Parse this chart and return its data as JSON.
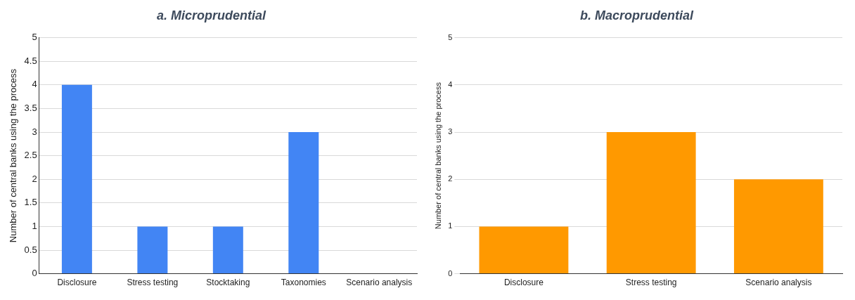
{
  "chart_data": [
    {
      "type": "bar",
      "title": "a. Microprudential",
      "ylabel": "Number of central banks using the process",
      "categories": [
        "Disclosure",
        "Stress testing",
        "Stocktaking",
        "Taxonomies",
        "Scenario analysis"
      ],
      "values": [
        4,
        1,
        1,
        3,
        0
      ],
      "color": "#4285f4",
      "ylim": [
        0,
        5
      ],
      "yticks": [
        0,
        0.5,
        1,
        1.5,
        2,
        2.5,
        3,
        3.5,
        4,
        4.5,
        5
      ],
      "grid": "y"
    },
    {
      "type": "bar",
      "title": "b. Macroprudential",
      "ylabel": "Number of central banks using the process",
      "categories": [
        "Disclosure",
        "Stress testing",
        "Scenario analysis"
      ],
      "values": [
        1,
        3,
        2
      ],
      "color": "#ff9900",
      "ylim": [
        0,
        5
      ],
      "yticks": [
        0,
        1,
        2,
        3,
        4,
        5
      ],
      "grid": "y"
    }
  ]
}
